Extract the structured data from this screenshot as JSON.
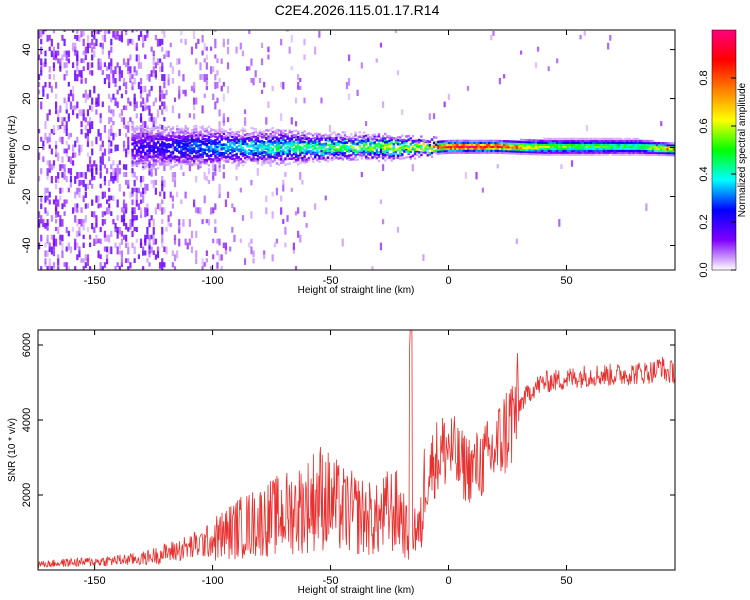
{
  "title": "C2E4.2026.115.01.17.R14",
  "chart_data": [
    {
      "type": "heatmap",
      "title": "C2E4.2026.115.01.17.R14",
      "xlabel": "Height of straight line (km)",
      "ylabel": "Frequency (Hz)",
      "xlim": [
        -174,
        96
      ],
      "ylim": [
        -50,
        48
      ],
      "xticks": [
        -150,
        -100,
        -50,
        0,
        50
      ],
      "xtick_labels": [
        "-150",
        "-100",
        "-50",
        "0",
        "50"
      ],
      "yticks": [
        -40,
        -20,
        0,
        20,
        40
      ],
      "ytick_labels": [
        "-40",
        "-20",
        "0",
        "20",
        "40"
      ],
      "colorbar": {
        "label": "Normalized spectral amplitude",
        "range": [
          0,
          1
        ],
        "ticks": [
          0.0,
          0.2,
          0.4,
          0.6,
          0.8
        ],
        "tick_labels": [
          "0.0",
          "0.2",
          "0.4",
          "0.6",
          "0.8"
        ],
        "colormap": [
          "#ffffff",
          "#7f00ff",
          "#0000ff",
          "#00ffff",
          "#00ff00",
          "#ffff00",
          "#ff8000",
          "#ff0000",
          "#ff0080"
        ]
      },
      "ridge": [
        {
          "x": -130,
          "f": 0,
          "amp": 0.18,
          "width": 6
        },
        {
          "x": -110,
          "f": 0,
          "amp": 0.28,
          "width": 5
        },
        {
          "x": -90,
          "f": 0,
          "amp": 0.35,
          "width": 4
        },
        {
          "x": -70,
          "f": 0,
          "amp": 0.42,
          "width": 4
        },
        {
          "x": -50,
          "f": 0,
          "amp": 0.48,
          "width": 3
        },
        {
          "x": -30,
          "f": 0,
          "amp": 0.52,
          "width": 3
        },
        {
          "x": -10,
          "f": 0,
          "amp": 0.65,
          "width": 2
        },
        {
          "x": 0,
          "f": 0,
          "amp": 0.95,
          "width": 1.5
        },
        {
          "x": 20,
          "f": 0,
          "amp": 0.9,
          "width": 1.5
        },
        {
          "x": 40,
          "f": 0,
          "amp": 0.55,
          "width": 2
        },
        {
          "x": 60,
          "f": 0,
          "amp": 0.5,
          "width": 2
        },
        {
          "x": 80,
          "f": 0,
          "amp": 0.45,
          "width": 2
        },
        {
          "x": 94,
          "f": -1,
          "amp": 0.75,
          "width": 1.5
        }
      ]
    },
    {
      "type": "line",
      "xlabel": "Height of straight line (km)",
      "ylabel": "SNR (10 * v/v)",
      "xlim": [
        -174,
        96
      ],
      "ylim": [
        0,
        6400
      ],
      "xticks": [
        -150,
        -100,
        -50,
        0,
        50
      ],
      "xtick_labels": [
        "-150",
        "-100",
        "-50",
        "0",
        "50"
      ],
      "yticks": [
        2000,
        4000,
        6000
      ],
      "ytick_labels": [
        "2000",
        "4000",
        "6000"
      ],
      "color": "#e8312f",
      "series": [
        {
          "name": "SNR",
          "x": [
            -174,
            -160,
            -150,
            -140,
            -130,
            -120,
            -110,
            -100,
            -90,
            -80,
            -70,
            -60,
            -55,
            -50,
            -45,
            -40,
            -35,
            -30,
            -25,
            -20,
            -17,
            -16,
            -15,
            -12,
            -10,
            -8,
            -5,
            0,
            5,
            10,
            15,
            20,
            25,
            30,
            35,
            40,
            50,
            60,
            70,
            80,
            88,
            90,
            92,
            96
          ],
          "y": [
            150,
            200,
            220,
            260,
            300,
            450,
            600,
            800,
            1100,
            1300,
            1500,
            1700,
            2000,
            1800,
            1600,
            1500,
            1400,
            1300,
            1600,
            1500,
            800,
            6400,
            1200,
            1000,
            2200,
            2700,
            3000,
            3300,
            2800,
            2700,
            2900,
            3200,
            3800,
            4400,
            4800,
            5000,
            5100,
            5200,
            5200,
            5250,
            5300,
            5500,
            5250,
            5300
          ]
        }
      ]
    }
  ]
}
